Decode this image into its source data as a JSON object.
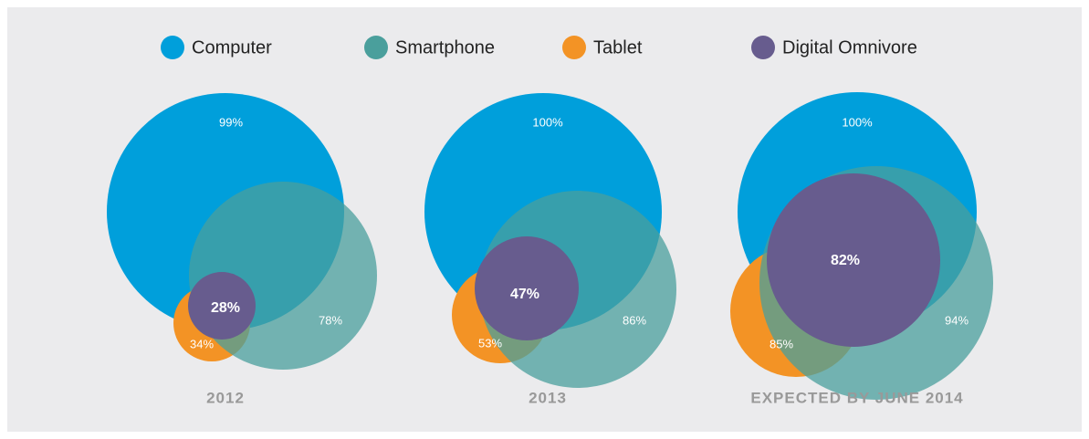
{
  "chart_data": {
    "type": "venn",
    "categories": [
      "2012",
      "2013",
      "EXPECTED BY JUNE 2014"
    ],
    "series": [
      {
        "name": "Computer",
        "color": "#009fdb",
        "values": [
          99,
          100,
          100
        ],
        "value_labels": [
          "99%",
          "100%",
          "100%"
        ]
      },
      {
        "name": "Smartphone",
        "color": "#4a9f9c",
        "values": [
          78,
          86,
          94
        ],
        "value_labels": [
          "78%",
          "86%",
          "94%"
        ]
      },
      {
        "name": "Tablet",
        "color": "#f39325",
        "values": [
          34,
          53,
          85
        ],
        "value_labels": [
          "34%",
          "53%",
          "85%"
        ]
      },
      {
        "name": "Digital Omnivore",
        "color": "#675c8e",
        "values": [
          28,
          47,
          82
        ],
        "value_labels": [
          "28%",
          "47%",
          "82%"
        ]
      }
    ],
    "legend": "top"
  }
}
